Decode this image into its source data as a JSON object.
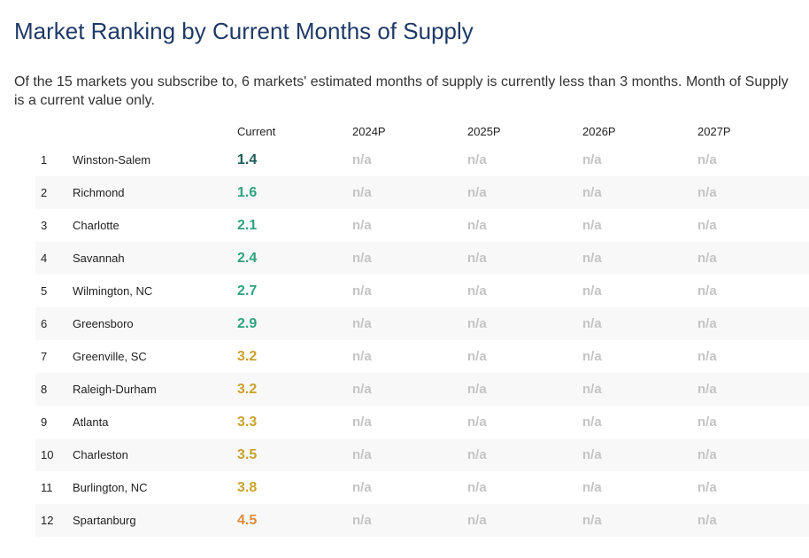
{
  "title": "Market Ranking by Current Months of Supply",
  "subtitle": "Of the 15 markets you subscribe to, 6 markets' estimated months of supply is currently less than 3 months. Month of Supply is a current value only.",
  "columns": [
    "Current",
    "2024P",
    "2025P",
    "2026P",
    "2027P"
  ],
  "colors": {
    "dark_teal": "#1d5a55",
    "green": "#2ea37e",
    "gold": "#c9a22a",
    "orange": "#e08a3c",
    "na": "#c4c4c4"
  },
  "rows": [
    {
      "rank": "1",
      "market": "Winston-Salem",
      "current": "1.4",
      "color": "#1d5a55",
      "p2024": "n/a",
      "p2025": "n/a",
      "p2026": "n/a",
      "p2027": "n/a"
    },
    {
      "rank": "2",
      "market": "Richmond",
      "current": "1.6",
      "color": "#2ea37e",
      "p2024": "n/a",
      "p2025": "n/a",
      "p2026": "n/a",
      "p2027": "n/a"
    },
    {
      "rank": "3",
      "market": "Charlotte",
      "current": "2.1",
      "color": "#2ea37e",
      "p2024": "n/a",
      "p2025": "n/a",
      "p2026": "n/a",
      "p2027": "n/a"
    },
    {
      "rank": "4",
      "market": "Savannah",
      "current": "2.4",
      "color": "#2ea37e",
      "p2024": "n/a",
      "p2025": "n/a",
      "p2026": "n/a",
      "p2027": "n/a"
    },
    {
      "rank": "5",
      "market": "Wilmington, NC",
      "current": "2.7",
      "color": "#2ea37e",
      "p2024": "n/a",
      "p2025": "n/a",
      "p2026": "n/a",
      "p2027": "n/a"
    },
    {
      "rank": "6",
      "market": "Greensboro",
      "current": "2.9",
      "color": "#2ea37e",
      "p2024": "n/a",
      "p2025": "n/a",
      "p2026": "n/a",
      "p2027": "n/a"
    },
    {
      "rank": "7",
      "market": "Greenville, SC",
      "current": "3.2",
      "color": "#c9a22a",
      "p2024": "n/a",
      "p2025": "n/a",
      "p2026": "n/a",
      "p2027": "n/a"
    },
    {
      "rank": "8",
      "market": "Raleigh-Durham",
      "current": "3.2",
      "color": "#c9a22a",
      "p2024": "n/a",
      "p2025": "n/a",
      "p2026": "n/a",
      "p2027": "n/a"
    },
    {
      "rank": "9",
      "market": "Atlanta",
      "current": "3.3",
      "color": "#c9a22a",
      "p2024": "n/a",
      "p2025": "n/a",
      "p2026": "n/a",
      "p2027": "n/a"
    },
    {
      "rank": "10",
      "market": "Charleston",
      "current": "3.5",
      "color": "#c9a22a",
      "p2024": "n/a",
      "p2025": "n/a",
      "p2026": "n/a",
      "p2027": "n/a"
    },
    {
      "rank": "11",
      "market": "Burlington, NC",
      "current": "3.8",
      "color": "#c9a22a",
      "p2024": "n/a",
      "p2025": "n/a",
      "p2026": "n/a",
      "p2027": "n/a"
    },
    {
      "rank": "12",
      "market": "Spartanburg",
      "current": "4.5",
      "color": "#e08a3c",
      "p2024": "n/a",
      "p2025": "n/a",
      "p2026": "n/a",
      "p2027": "n/a"
    }
  ]
}
